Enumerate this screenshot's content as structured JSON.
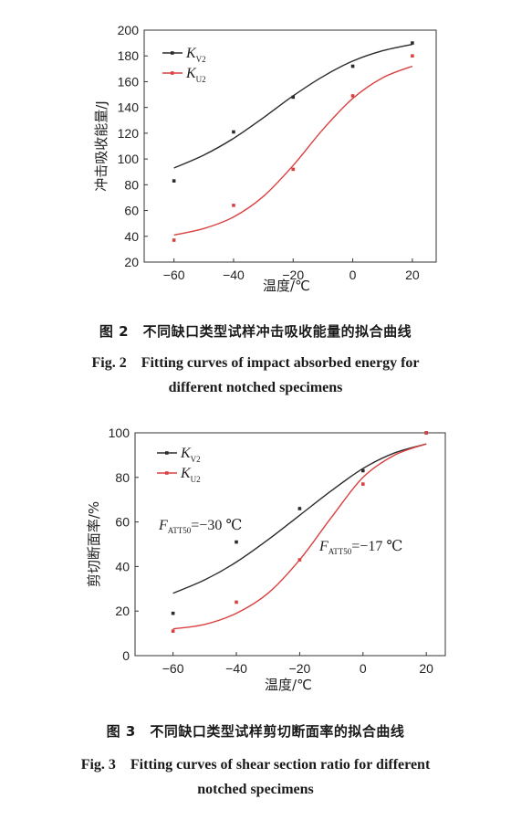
{
  "figures": [
    {
      "caption_cn": "图 2　不同缺口类型试样冲击吸收能量的拟合曲线",
      "caption_en_line1": "Fig. 2　Fitting curves of impact absorbed energy for",
      "caption_en_line2": "different notched specimens"
    },
    {
      "caption_cn": "图 3　不同缺口类型试样剪切断面率的拟合曲线",
      "caption_en_line1": "Fig. 3　Fitting curves of shear section ratio for different",
      "caption_en_line2": "notched specimens"
    }
  ],
  "chart_data": [
    {
      "type": "line",
      "xlabel": "温度/℃",
      "ylabel": "冲击吸收能量/J",
      "xlim": [
        -70,
        28
      ],
      "ylim": [
        20,
        200
      ],
      "xticks": [
        -60,
        -40,
        -20,
        0,
        20
      ],
      "yticks": [
        20,
        40,
        60,
        80,
        100,
        120,
        140,
        160,
        180,
        200
      ],
      "legend_position": "top-left",
      "colors": {
        "KV2": "#2b2b2b",
        "KU2": "#d94040"
      },
      "series": [
        {
          "name": "K",
          "sub": "V2",
          "key": "KV2",
          "points_x": [
            -60,
            -40,
            -20,
            0,
            20
          ],
          "points_y": [
            83,
            121,
            148,
            172,
            190
          ],
          "fit_x": [
            -60,
            -50,
            -40,
            -30,
            -20,
            -10,
            0,
            10,
            20
          ],
          "fit_y": [
            93,
            103,
            116,
            132,
            149,
            164,
            176,
            184,
            189
          ]
        },
        {
          "name": "K",
          "sub": "U2",
          "key": "KU2",
          "points_x": [
            -60,
            -40,
            -20,
            0,
            20
          ],
          "points_y": [
            37,
            64,
            92,
            149,
            180
          ],
          "fit_x": [
            -60,
            -50,
            -40,
            -30,
            -20,
            -10,
            0,
            10,
            20
          ],
          "fit_y": [
            41,
            46,
            55,
            71,
            95,
            123,
            147,
            163,
            172
          ]
        }
      ],
      "annotations": []
    },
    {
      "type": "line",
      "xlabel": "温度/℃",
      "ylabel": "剪切断面率/%",
      "xlim": [
        -72,
        26
      ],
      "ylim": [
        0,
        100
      ],
      "xticks": [
        -60,
        -40,
        -20,
        0,
        20
      ],
      "yticks": [
        0,
        20,
        40,
        60,
        80,
        100
      ],
      "legend_position": "top-left",
      "colors": {
        "KV2": "#2b2b2b",
        "KU2": "#d94040"
      },
      "series": [
        {
          "name": "K",
          "sub": "V2",
          "key": "KV2",
          "points_x": [
            -60,
            -40,
            -20,
            0,
            20
          ],
          "points_y": [
            19,
            51,
            66,
            83,
            100
          ],
          "fit_x": [
            -60,
            -50,
            -40,
            -30,
            -20,
            -10,
            0,
            10,
            20
          ],
          "fit_y": [
            28,
            34,
            42,
            52,
            63,
            74,
            84,
            91,
            95
          ]
        },
        {
          "name": "K",
          "sub": "U2",
          "key": "KU2",
          "points_x": [
            -60,
            -40,
            -20,
            0,
            20
          ],
          "points_y": [
            11,
            24,
            43,
            77,
            100
          ],
          "fit_x": [
            -60,
            -50,
            -40,
            -30,
            -20,
            -10,
            0,
            10,
            20
          ],
          "fit_y": [
            12,
            14,
            19,
            28,
            43,
            62,
            80,
            90,
            95
          ]
        }
      ],
      "annotations": [
        {
          "label": "F",
          "sub": "ATT50",
          "value": "=−30 ℃"
        },
        {
          "label": "F",
          "sub": "ATT50",
          "value": "=−17 ℃"
        }
      ]
    }
  ]
}
